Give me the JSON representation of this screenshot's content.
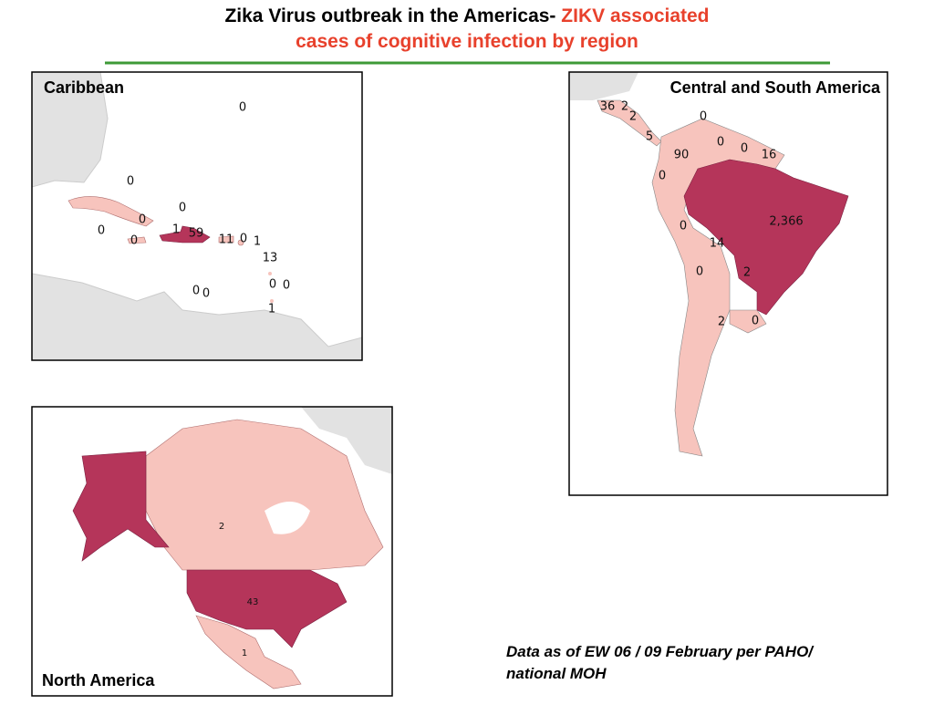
{
  "header": {
    "title_black": "Zika Virus outbreak in the Americas-",
    "title_red": "ZIKV associated",
    "title_line2": "cases of cognitive infection by region"
  },
  "panels": {
    "caribbean": {
      "title": "Caribbean",
      "labels": [
        "0",
        "0",
        "0",
        "0",
        "0",
        "1",
        "59",
        "0",
        "11",
        "0",
        "1",
        "13",
        "0",
        "0",
        "0",
        "0",
        "1"
      ]
    },
    "central_south": {
      "title": "Central and South America",
      "labels": [
        "36",
        "2",
        "2",
        "0",
        "5",
        "0",
        "0",
        "90",
        "16",
        "0",
        "2,366",
        "0",
        "14",
        "0",
        "2",
        "2",
        "0"
      ]
    },
    "north_america": {
      "title": "North America",
      "labels": [
        "2",
        "43",
        "1"
      ]
    }
  },
  "footnote": {
    "lines": [
      "Data as of EW 06 / 09 February per PAHO/",
      "national MOH"
    ]
  }
}
